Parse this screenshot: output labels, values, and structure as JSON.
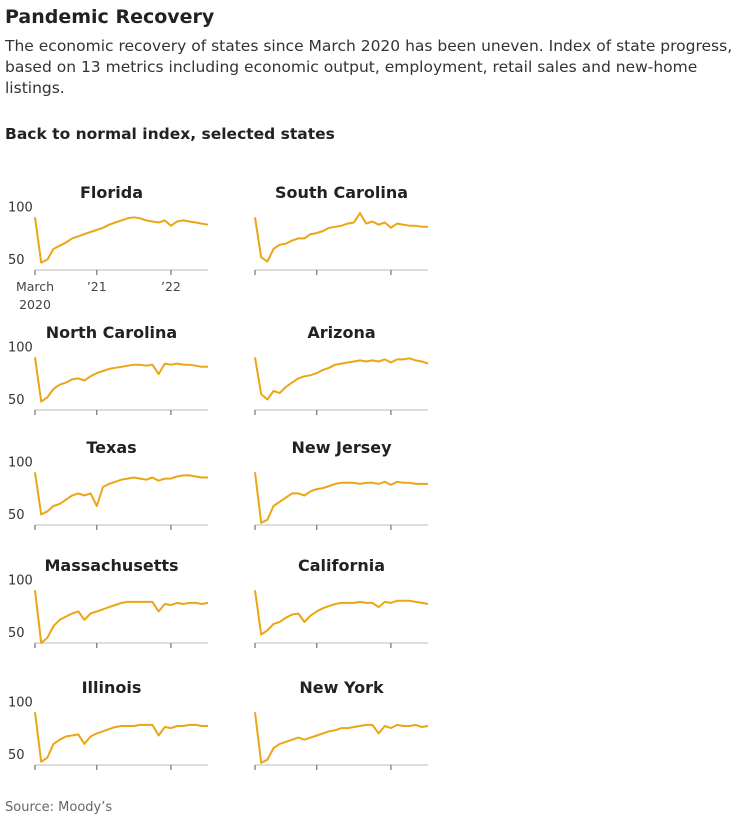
{
  "title": "Pandemic Recovery",
  "subtitle": "The economic recovery of states since March 2020 has been uneven. Index of state progress, based on 13 metrics including economic output, employment, retail sales and new-home listings.",
  "section_title": "Back to normal index, selected states",
  "source": "Source: Moody’s",
  "chart_data": [
    {
      "type": "line",
      "title": "Florida",
      "color": "#eba515",
      "ylim": [
        50,
        105
      ],
      "yticks": [
        50,
        100
      ],
      "categories": [
        "March 2020",
        null,
        null,
        null,
        null,
        null,
        null,
        null,
        null,
        null,
        "’21",
        null,
        null,
        null,
        null,
        null,
        null,
        null,
        null,
        null,
        null,
        null,
        "’22",
        null,
        null,
        null,
        null,
        null,
        null
      ],
      "values": [
        100,
        57,
        60,
        70,
        73,
        76,
        80,
        82,
        84,
        86,
        88,
        90,
        93,
        95,
        97,
        99,
        100,
        99,
        97,
        96,
        95,
        97,
        92,
        96,
        97,
        96,
        95,
        94,
        93
      ]
    },
    {
      "type": "line",
      "title": "South Carolina",
      "color": "#eba515",
      "ylim": [
        50,
        105
      ],
      "values": [
        100,
        62,
        58,
        70,
        74,
        75,
        78,
        80,
        80,
        84,
        85,
        87,
        90,
        91,
        92,
        94,
        95,
        104,
        94,
        96,
        93,
        95,
        90,
        94,
        93,
        92,
        92,
        91,
        91
      ]
    },
    {
      "type": "line",
      "title": "North Carolina",
      "color": "#eba515",
      "ylim": [
        50,
        105
      ],
      "yticks": [
        50,
        100
      ],
      "values": [
        100,
        58,
        62,
        70,
        74,
        76,
        79,
        80,
        78,
        82,
        85,
        87,
        89,
        90,
        91,
        92,
        93,
        93,
        92,
        93,
        84,
        94,
        93,
        94,
        93,
        93,
        92,
        91,
        91
      ]
    },
    {
      "type": "line",
      "title": "Arizona",
      "color": "#eba515",
      "ylim": [
        50,
        105
      ],
      "values": [
        100,
        65,
        60,
        68,
        66,
        72,
        76,
        80,
        82,
        83,
        85,
        88,
        90,
        93,
        94,
        95,
        96,
        97,
        96,
        97,
        96,
        98,
        95,
        98,
        98,
        99,
        97,
        96,
        94
      ]
    },
    {
      "type": "line",
      "title": "Texas",
      "color": "#eba515",
      "ylim": [
        50,
        105
      ],
      "yticks": [
        50,
        100
      ],
      "values": [
        100,
        60,
        63,
        68,
        70,
        74,
        78,
        80,
        78,
        80,
        68,
        86,
        89,
        91,
        93,
        94,
        95,
        94,
        93,
        95,
        92,
        94,
        94,
        96,
        97,
        97,
        96,
        95,
        95
      ]
    },
    {
      "type": "line",
      "title": "New Jersey",
      "color": "#eba515",
      "ylim": [
        50,
        105
      ],
      "values": [
        100,
        52,
        55,
        68,
        72,
        76,
        80,
        80,
        78,
        82,
        84,
        85,
        87,
        89,
        90,
        90,
        90,
        89,
        90,
        90,
        89,
        91,
        88,
        91,
        90,
        90,
        89,
        89,
        89
      ]
    },
    {
      "type": "line",
      "title": "Massachusetts",
      "color": "#eba515",
      "ylim": [
        50,
        105
      ],
      "yticks": [
        50,
        100
      ],
      "values": [
        100,
        50,
        55,
        66,
        72,
        75,
        78,
        80,
        72,
        78,
        80,
        82,
        84,
        86,
        88,
        89,
        89,
        89,
        89,
        89,
        80,
        87,
        86,
        88,
        87,
        88,
        88,
        87,
        88
      ]
    },
    {
      "type": "line",
      "title": "California",
      "color": "#eba515",
      "ylim": [
        50,
        105
      ],
      "values": [
        100,
        58,
        62,
        68,
        70,
        74,
        77,
        78,
        70,
        76,
        80,
        83,
        85,
        87,
        88,
        88,
        88,
        89,
        88,
        88,
        84,
        89,
        88,
        90,
        90,
        90,
        89,
        88,
        87
      ]
    },
    {
      "type": "line",
      "title": "Illinois",
      "color": "#eba515",
      "ylim": [
        50,
        105
      ],
      "yticks": [
        50,
        100
      ],
      "values": [
        100,
        53,
        57,
        70,
        74,
        77,
        78,
        79,
        70,
        77,
        80,
        82,
        84,
        86,
        87,
        87,
        87,
        88,
        88,
        88,
        78,
        86,
        85,
        87,
        87,
        88,
        88,
        87,
        87
      ]
    },
    {
      "type": "line",
      "title": "New York",
      "color": "#eba515",
      "ylim": [
        50,
        105
      ],
      "values": [
        100,
        52,
        55,
        66,
        70,
        72,
        74,
        76,
        74,
        76,
        78,
        80,
        82,
        83,
        85,
        85,
        86,
        87,
        88,
        88,
        80,
        87,
        85,
        88,
        87,
        87,
        88,
        86,
        87
      ]
    }
  ]
}
